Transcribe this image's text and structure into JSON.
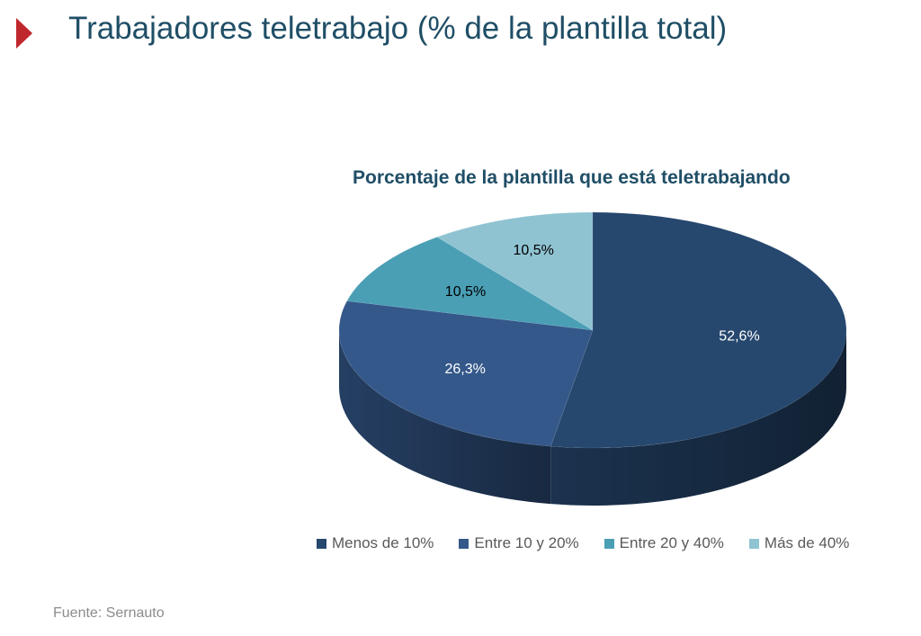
{
  "slide": {
    "title": "Trabajadores teletrabajo (% de la plantilla total)",
    "source": "Fuente: Sernauto",
    "accent_color": "#c0272d"
  },
  "chart_data": {
    "type": "pie",
    "title": "Porcentaje de la plantilla que está teletrabajando",
    "categories": [
      "Menos de 10%",
      "Entre 10 y 20%",
      "Entre 20 y 40%",
      "Más de 40%"
    ],
    "values": [
      52.6,
      26.3,
      10.5,
      10.5
    ],
    "data_labels": [
      "52,6%",
      "26,3%",
      "10,5%",
      "10,5%"
    ],
    "colors": [
      "#26476e",
      "#34588a",
      "#4a9fb5",
      "#8fc3d2"
    ],
    "label_colors": [
      "#ffffff",
      "#ffffff",
      "#000000",
      "#000000"
    ],
    "legend_position": "bottom",
    "style": "3d"
  }
}
